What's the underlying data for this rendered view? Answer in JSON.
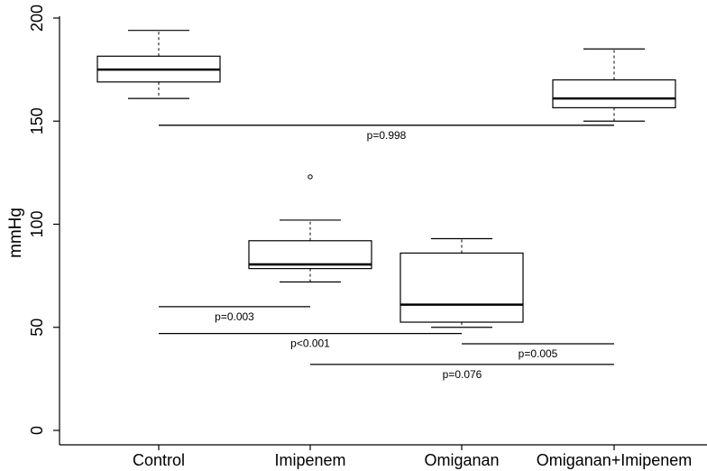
{
  "chart_data": {
    "type": "boxplot",
    "ylabel": "mmHg",
    "ylim": [
      0,
      200
    ],
    "yticks": [
      0,
      50,
      100,
      150,
      200
    ],
    "grid": false,
    "categories": [
      "Control",
      "Imipenem",
      "Omiganan",
      "Omiganan+Imipenem"
    ],
    "boxes": [
      {
        "category": "Control",
        "whisker_low": 161,
        "q1": 169,
        "median": 175,
        "q3": 181.5,
        "whisker_high": 194,
        "outliers": []
      },
      {
        "category": "Imipenem",
        "whisker_low": 72,
        "q1": 78.5,
        "median": 80.5,
        "q3": 92,
        "whisker_high": 102,
        "outliers": [
          123
        ]
      },
      {
        "category": "Omiganan",
        "whisker_low": 50,
        "q1": 52.5,
        "median": 61,
        "q3": 86,
        "whisker_high": 93,
        "outliers": []
      },
      {
        "category": "Omiganan+Imipenem",
        "whisker_low": 150,
        "q1": 156.5,
        "median": 161,
        "q3": 170,
        "whisker_high": 185,
        "outliers": []
      }
    ],
    "comparisons": [
      {
        "from": "Control",
        "to": "Omiganan+Imipenem",
        "y": 148,
        "label": "p=0.998"
      },
      {
        "from": "Control",
        "to": "Imipenem",
        "y": 60,
        "label": "p=0.003"
      },
      {
        "from": "Control",
        "to": "Omiganan",
        "y": 47,
        "label": "p<0.001"
      },
      {
        "from": "Omiganan",
        "to": "Omiganan+Imipenem",
        "y": 42,
        "label": "p=0.005"
      },
      {
        "from": "Imipenem",
        "to": "Omiganan+Imipenem",
        "y": 32,
        "label": "p=0.076"
      }
    ]
  }
}
